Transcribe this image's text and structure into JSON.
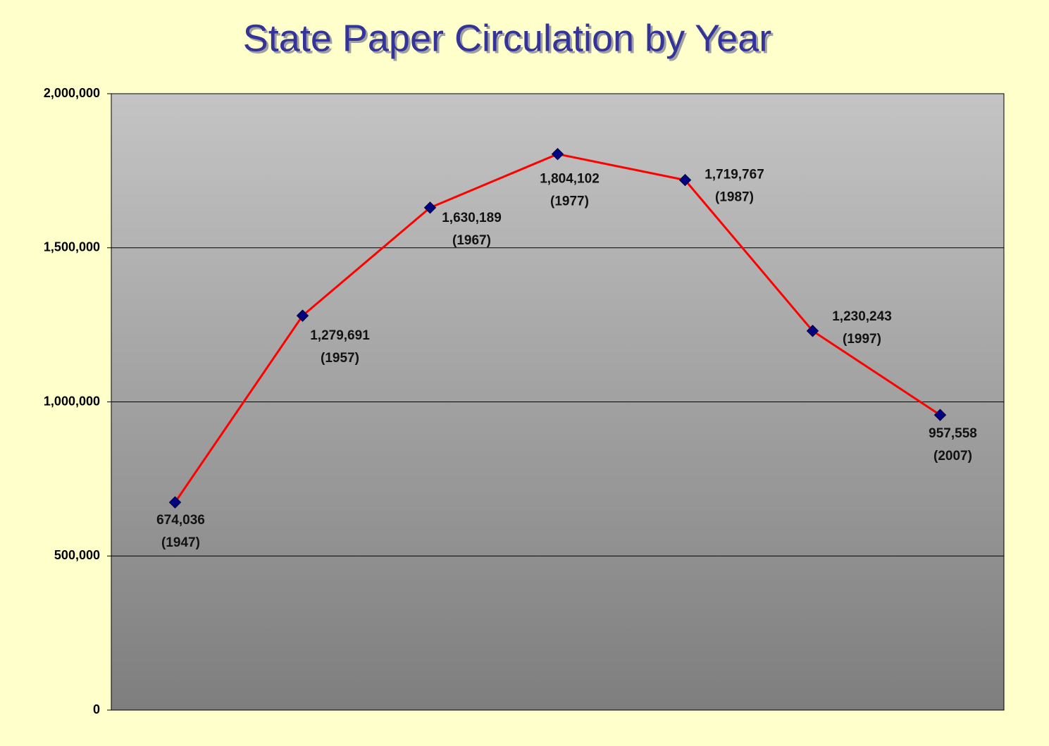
{
  "chart_data": {
    "type": "line",
    "title": "State Paper Circulation by Year",
    "categories": [
      "(1947)",
      "(1957)",
      "(1967)",
      "(1977)",
      "(1987)",
      "(1997)",
      "(2007)"
    ],
    "series": [
      {
        "color": "#ff0000",
        "marker_color": "#000080",
        "values": [
          674036,
          1279691,
          1630189,
          1804102,
          1719767,
          1230243,
          957558
        ],
        "value_labels": [
          "674,036",
          "1,279,691",
          "1,630,189",
          "1,804,102",
          "1,719,767",
          "1,230,243",
          "957,558"
        ]
      }
    ],
    "ylim": [
      0,
      2000000
    ],
    "yticks": [
      0,
      {
        "value": 500000,
        "label": "500,000"
      },
      {
        "value": 1000000,
        "label": "1,000,000"
      },
      {
        "value": 1500000,
        "label": "1,500,000"
      },
      {
        "value": 2000000,
        "label": "2,000,000"
      }
    ],
    "grid": true
  }
}
